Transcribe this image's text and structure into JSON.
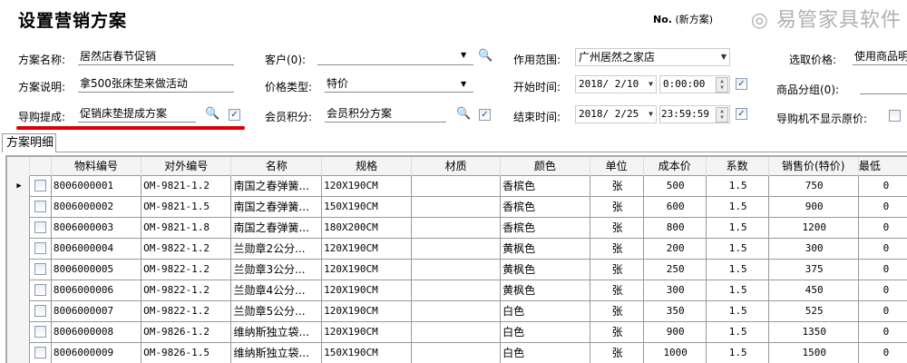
{
  "header": {
    "title": "设置营销方案",
    "no_label": "No.",
    "no_value": "(新方案)"
  },
  "form": {
    "scheme_name": {
      "label": "方案名称:",
      "value": "居然店春节促销"
    },
    "scheme_desc": {
      "label": "方案说明:",
      "value": "拿500张床垫来做活动"
    },
    "guide_commission": {
      "label": "导购提成:",
      "value": "促销床垫提成方案",
      "checked": true
    },
    "customer": {
      "label": "客户(0):",
      "value": ""
    },
    "price_type": {
      "label": "价格类型:",
      "value": "特价"
    },
    "member_points": {
      "label": "会员积分:",
      "value": "会员积分方案",
      "checked": true
    },
    "scope": {
      "label": "作用范围:",
      "value": "广州居然之家店"
    },
    "start_time": {
      "label": "开始时间:",
      "date": "2018/ 2/10",
      "time": "0:00:00",
      "checked": true
    },
    "end_time": {
      "label": "结束时间:",
      "date": "2018/ 2/25",
      "time": "23:59:59",
      "checked": true
    },
    "select_price": {
      "label": "选取价格:",
      "value": "使用商品明"
    },
    "product_group": {
      "label": "商品分组(0):",
      "value": ""
    },
    "hide_original_price": {
      "label": "导购机不显示原价:",
      "checked": false
    }
  },
  "tabs": [
    {
      "label": "方案明细",
      "active": true
    }
  ],
  "table": {
    "columns": [
      "物料编号",
      "对外编号",
      "名称",
      "规格",
      "材质",
      "颜色",
      "单位",
      "成本价",
      "系数",
      "销售价(特价)",
      "最低"
    ],
    "rows": [
      [
        "8006000001",
        "OM-9821-1.2",
        "南国之春弹簧...",
        "120X190CM",
        "",
        "香槟色",
        "张",
        "500",
        "1.5",
        "750",
        "0"
      ],
      [
        "8006000002",
        "OM-9821-1.5",
        "南国之春弹簧...",
        "150X190CM",
        "",
        "香槟色",
        "张",
        "600",
        "1.5",
        "900",
        "0"
      ],
      [
        "8006000003",
        "OM-9821-1.8",
        "南国之春弹簧...",
        "180X200CM",
        "",
        "香槟色",
        "张",
        "800",
        "1.5",
        "1200",
        "0"
      ],
      [
        "8006000004",
        "OM-9822-1.2",
        "兰勋章2公分...",
        "120X190CM",
        "",
        "黄枫色",
        "张",
        "200",
        "1.5",
        "300",
        "0"
      ],
      [
        "8006000005",
        "OM-9822-1.2",
        "兰勋章3公分...",
        "120X190CM",
        "",
        "黄枫色",
        "张",
        "250",
        "1.5",
        "375",
        "0"
      ],
      [
        "8006000006",
        "OM-9822-1.2",
        "兰勋章4公分...",
        "120X190CM",
        "",
        "黄枫色",
        "张",
        "300",
        "1.5",
        "450",
        "0"
      ],
      [
        "8006000007",
        "OM-9822-1.2",
        "兰勋章5公分...",
        "120X190CM",
        "",
        "白色",
        "张",
        "350",
        "1.5",
        "525",
        "0"
      ],
      [
        "8006000008",
        "OM-9826-1.2",
        "维纳斯独立袋...",
        "120X190CM",
        "",
        "白色",
        "张",
        "900",
        "1.5",
        "1350",
        "0"
      ],
      [
        "8006000009",
        "OM-9826-1.5",
        "维纳斯独立袋...",
        "150X190CM",
        "",
        "白色",
        "张",
        "1000",
        "1.5",
        "1500",
        "0"
      ]
    ]
  },
  "watermark": "易管家具软件",
  "colors": {
    "highlight": "#dd0000"
  }
}
